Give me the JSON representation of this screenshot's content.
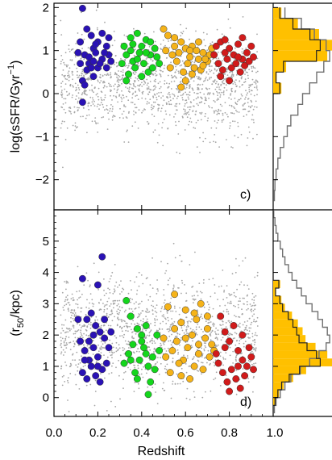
{
  "chart_data": [
    {
      "type": "scatter",
      "panel_label": "c)",
      "ylabel": "log(sSFR/Gyr⁻¹)",
      "ylabel_parts": {
        "base": "log(sSFR/Gyr",
        "sup": "−1",
        "close": ")"
      },
      "xlim": [
        0.0,
        1.0
      ],
      "ylim": [
        -2.7,
        2.1
      ],
      "yticks": [
        -2,
        -1,
        0,
        1,
        2
      ],
      "ytick_labels": [
        "−2",
        "−1",
        "0",
        "1",
        "2"
      ],
      "background_cloud": {
        "color": "#a6a6a6",
        "x_range": [
          0.03,
          0.93
        ],
        "y_center": 0.2,
        "y_spread": 0.55
      },
      "series": [
        {
          "color": "#2a12b5",
          "points": [
            [
              0.13,
              1.98
            ],
            [
              0.12,
              1.2
            ],
            [
              0.15,
              1.5
            ],
            [
              0.17,
              1.35
            ],
            [
              0.12,
              0.7
            ],
            [
              0.14,
              0.9
            ],
            [
              0.16,
              0.85
            ],
            [
              0.18,
              1.05
            ],
            [
              0.2,
              1.2
            ],
            [
              0.22,
              1.4
            ],
            [
              0.24,
              1.1
            ],
            [
              0.25,
              0.9
            ],
            [
              0.2,
              0.6
            ],
            [
              0.18,
              0.4
            ],
            [
              0.16,
              0.7
            ],
            [
              0.22,
              0.8
            ],
            [
              0.24,
              0.6
            ],
            [
              0.26,
              0.75
            ],
            [
              0.15,
              0.55
            ],
            [
              0.13,
              0.3
            ],
            [
              0.19,
              0.95
            ],
            [
              0.21,
              0.7
            ],
            [
              0.23,
              0.95
            ],
            [
              0.17,
              0.6
            ],
            [
              0.14,
              0.2
            ],
            [
              0.13,
              -0.2
            ],
            [
              0.19,
              1.15
            ],
            [
              0.25,
              1.3
            ],
            [
              0.11,
              0.95
            ],
            [
              0.18,
              0.75
            ]
          ]
        },
        {
          "color": "#14d61c",
          "points": [
            [
              0.32,
              1.1
            ],
            [
              0.35,
              1.3
            ],
            [
              0.38,
              1.4
            ],
            [
              0.33,
              0.9
            ],
            [
              0.36,
              0.75
            ],
            [
              0.4,
              1.1
            ],
            [
              0.42,
              1.25
            ],
            [
              0.44,
              0.9
            ],
            [
              0.46,
              1.05
            ],
            [
              0.34,
              0.45
            ],
            [
              0.37,
              0.6
            ],
            [
              0.41,
              0.7
            ],
            [
              0.43,
              0.5
            ],
            [
              0.45,
              0.6
            ],
            [
              0.39,
              0.95
            ],
            [
              0.35,
              1.0
            ],
            [
              0.31,
              0.7
            ],
            [
              0.47,
              0.85
            ],
            [
              0.33,
              0.3
            ],
            [
              0.4,
              0.4
            ],
            [
              0.44,
              1.2
            ],
            [
              0.38,
              0.8
            ],
            [
              0.48,
              0.7
            ],
            [
              0.36,
              1.15
            ],
            [
              0.42,
              0.95
            ]
          ]
        },
        {
          "color": "#f5b319",
          "points": [
            [
              0.5,
              1.5
            ],
            [
              0.52,
              1.35
            ],
            [
              0.55,
              1.1
            ],
            [
              0.57,
              0.95
            ],
            [
              0.58,
              1.2
            ],
            [
              0.6,
              1.05
            ],
            [
              0.62,
              0.85
            ],
            [
              0.63,
              1.1
            ],
            [
              0.65,
              1.0
            ],
            [
              0.66,
              0.8
            ],
            [
              0.68,
              0.95
            ],
            [
              0.7,
              0.75
            ],
            [
              0.71,
              0.9
            ],
            [
              0.53,
              0.6
            ],
            [
              0.56,
              0.75
            ],
            [
              0.59,
              0.5
            ],
            [
              0.61,
              0.7
            ],
            [
              0.64,
              0.6
            ],
            [
              0.67,
              0.55
            ],
            [
              0.69,
              0.8
            ],
            [
              0.51,
              1.0
            ],
            [
              0.54,
              0.9
            ],
            [
              0.6,
              0.3
            ],
            [
              0.63,
              0.45
            ],
            [
              0.66,
              1.2
            ],
            [
              0.72,
              1.05
            ],
            [
              0.58,
              0.15
            ],
            [
              0.55,
              1.3
            ],
            [
              0.62,
              1.0
            ],
            [
              0.68,
              0.65
            ]
          ]
        },
        {
          "color": "#d11b1b",
          "points": [
            [
              0.74,
              1.1
            ],
            [
              0.76,
              1.2
            ],
            [
              0.78,
              0.95
            ],
            [
              0.8,
              1.05
            ],
            [
              0.82,
              0.9
            ],
            [
              0.84,
              1.15
            ],
            [
              0.86,
              0.8
            ],
            [
              0.88,
              0.95
            ],
            [
              0.9,
              1.1
            ],
            [
              0.75,
              0.7
            ],
            [
              0.77,
              0.55
            ],
            [
              0.79,
              0.8
            ],
            [
              0.81,
              0.6
            ],
            [
              0.83,
              0.7
            ],
            [
              0.85,
              0.5
            ],
            [
              0.87,
              0.65
            ],
            [
              0.76,
              0.4
            ],
            [
              0.8,
              0.3
            ],
            [
              0.84,
              0.85
            ],
            [
              0.89,
              0.75
            ],
            [
              0.73,
              0.9
            ],
            [
              0.86,
              1.3
            ],
            [
              0.91,
              0.85
            ],
            [
              0.78,
              1.25
            ]
          ]
        }
      ],
      "histogram": {
        "bins": [
          -2.5,
          -2.25,
          -2.0,
          -1.75,
          -1.5,
          -1.25,
          -1.0,
          -0.75,
          -0.5,
          -0.25,
          0.0,
          0.25,
          0.5,
          0.75,
          1.0,
          1.25,
          1.5,
          1.75
        ],
        "filled_counts": [
          0,
          0,
          0,
          0,
          0,
          0,
          0,
          0,
          0,
          0,
          0.14,
          0.06,
          0.22,
          0.92,
          1.0,
          0.78,
          0.42,
          0.14
        ],
        "outline_counts": [
          0.02,
          0.03,
          0.05,
          0.08,
          0.12,
          0.18,
          0.24,
          0.3,
          0.42,
          0.5,
          0.62,
          0.74,
          0.86,
          0.96,
          0.9,
          0.7,
          0.48,
          0.2
        ],
        "fill_color": "#ffc000",
        "outline_color": "#707070",
        "line_color": "#222222"
      }
    },
    {
      "type": "scatter",
      "panel_label": "d)",
      "xlabel": "Redshift",
      "ylabel": "(r₅₀/kpc)",
      "ylabel_parts": {
        "base": "(r",
        "sub": "50",
        "close": "/kpc)"
      },
      "xlim": [
        0.0,
        1.0
      ],
      "ylim": [
        -0.6,
        6.0
      ],
      "xticks": [
        0.0,
        0.2,
        0.4,
        0.6,
        0.8,
        1.0
      ],
      "xtick_labels": [
        "0.0",
        "0.2",
        "0.4",
        "0.6",
        "0.8",
        "1.0"
      ],
      "yticks": [
        0,
        1,
        2,
        3,
        4,
        5
      ],
      "ytick_labels": [
        "0",
        "1",
        "2",
        "3",
        "4",
        "5"
      ],
      "background_cloud": {
        "color": "#a6a6a6",
        "x_range": [
          0.03,
          0.93
        ],
        "y_center": 2.1,
        "y_spread": 0.9
      },
      "series": [
        {
          "color": "#2a12b5",
          "points": [
            [
              0.13,
              3.8
            ],
            [
              0.22,
              4.5
            ],
            [
              0.2,
              3.6
            ],
            [
              0.15,
              2.5
            ],
            [
              0.17,
              2.7
            ],
            [
              0.19,
              2.3
            ],
            [
              0.21,
              2.1
            ],
            [
              0.23,
              2.5
            ],
            [
              0.12,
              1.8
            ],
            [
              0.14,
              1.5
            ],
            [
              0.16,
              1.2
            ],
            [
              0.18,
              1.6
            ],
            [
              0.2,
              1.3
            ],
            [
              0.22,
              0.9
            ],
            [
              0.24,
              1.1
            ],
            [
              0.13,
              0.8
            ],
            [
              0.15,
              0.6
            ],
            [
              0.17,
              1.0
            ],
            [
              0.19,
              0.7
            ],
            [
              0.21,
              0.5
            ],
            [
              0.25,
              1.6
            ],
            [
              0.11,
              2.5
            ],
            [
              0.23,
              1.9
            ],
            [
              0.18,
              2.0
            ],
            [
              0.16,
              1.8
            ],
            [
              0.14,
              1.2
            ],
            [
              0.26,
              2.1
            ],
            [
              0.2,
              1.0
            ]
          ]
        },
        {
          "color": "#14d61c",
          "points": [
            [
              0.33,
              3.1
            ],
            [
              0.35,
              2.6
            ],
            [
              0.38,
              2.2
            ],
            [
              0.4,
              2.0
            ],
            [
              0.42,
              2.3
            ],
            [
              0.36,
              1.7
            ],
            [
              0.34,
              1.4
            ],
            [
              0.39,
              1.2
            ],
            [
              0.41,
              1.6
            ],
            [
              0.43,
              1.0
            ],
            [
              0.45,
              1.3
            ],
            [
              0.37,
              0.8
            ],
            [
              0.44,
              0.5
            ],
            [
              0.46,
              0.9
            ],
            [
              0.32,
              1.1
            ],
            [
              0.48,
              1.5
            ],
            [
              0.43,
              0.1
            ],
            [
              0.4,
              1.8
            ],
            [
              0.35,
              1.2
            ],
            [
              0.47,
              2.0
            ],
            [
              0.38,
              0.6
            ],
            [
              0.42,
              1.4
            ]
          ]
        },
        {
          "color": "#f5b319",
          "points": [
            [
              0.52,
              2.9
            ],
            [
              0.55,
              3.3
            ],
            [
              0.58,
              2.4
            ],
            [
              0.6,
              2.8
            ],
            [
              0.63,
              2.0
            ],
            [
              0.65,
              2.5
            ],
            [
              0.67,
              3.0
            ],
            [
              0.7,
              2.2
            ],
            [
              0.72,
              1.7
            ],
            [
              0.54,
              1.5
            ],
            [
              0.56,
              1.8
            ],
            [
              0.59,
              1.2
            ],
            [
              0.61,
              1.6
            ],
            [
              0.64,
              1.0
            ],
            [
              0.66,
              1.4
            ],
            [
              0.68,
              0.9
            ],
            [
              0.71,
              1.3
            ],
            [
              0.53,
              0.8
            ],
            [
              0.57,
              1.1
            ],
            [
              0.62,
              0.6
            ],
            [
              0.69,
              1.9
            ],
            [
              0.5,
              1.9
            ],
            [
              0.55,
              2.2
            ],
            [
              0.6,
              1.9
            ],
            [
              0.66,
              1.7
            ],
            [
              0.73,
              1.5
            ],
            [
              0.58,
              0.7
            ],
            [
              0.64,
              2.7
            ],
            [
              0.51,
              1.3
            ],
            [
              0.7,
              2.6
            ]
          ]
        },
        {
          "color": "#d11b1b",
          "points": [
            [
              0.76,
              2.6
            ],
            [
              0.78,
              2.1
            ],
            [
              0.8,
              1.8
            ],
            [
              0.82,
              2.3
            ],
            [
              0.84,
              1.5
            ],
            [
              0.86,
              1.2
            ],
            [
              0.88,
              1.0
            ],
            [
              0.9,
              1.3
            ],
            [
              0.75,
              1.1
            ],
            [
              0.77,
              0.8
            ],
            [
              0.79,
              0.5
            ],
            [
              0.81,
              0.9
            ],
            [
              0.83,
              0.6
            ],
            [
              0.85,
              0.3
            ],
            [
              0.87,
              0.7
            ],
            [
              0.74,
              1.4
            ],
            [
              0.89,
              1.6
            ],
            [
              0.8,
              0.2
            ],
            [
              0.84,
              1.0
            ],
            [
              0.91,
              0.9
            ],
            [
              0.86,
              2.0
            ],
            [
              0.78,
              1.6
            ]
          ]
        }
      ],
      "histogram": {
        "bins": [
          -0.5,
          -0.25,
          0.0,
          0.25,
          0.5,
          0.75,
          1.0,
          1.25,
          1.5,
          1.75,
          2.0,
          2.25,
          2.5,
          2.75,
          3.0,
          3.25,
          3.5,
          3.75,
          4.0,
          4.25,
          4.5,
          4.75,
          5.0,
          5.25,
          5.5,
          5.75
        ],
        "filled_counts": [
          0.0,
          0.04,
          0.1,
          0.18,
          0.34,
          0.56,
          1.0,
          0.92,
          0.72,
          0.55,
          0.5,
          0.42,
          0.32,
          0.2,
          0.14,
          0.05,
          0.12,
          0.0,
          0.0,
          0.0,
          0.0,
          0.0,
          0.0,
          0.0,
          0.0,
          0.0
        ],
        "outline_counts": [
          0.02,
          0.05,
          0.12,
          0.2,
          0.3,
          0.46,
          0.62,
          0.78,
          0.9,
          0.96,
          0.92,
          0.84,
          0.76,
          0.66,
          0.56,
          0.48,
          0.4,
          0.32,
          0.26,
          0.2,
          0.16,
          0.12,
          0.08,
          0.05,
          0.03,
          0.01
        ],
        "fill_color": "#ffc000",
        "outline_color": "#707070",
        "line_color": "#222222"
      }
    }
  ]
}
